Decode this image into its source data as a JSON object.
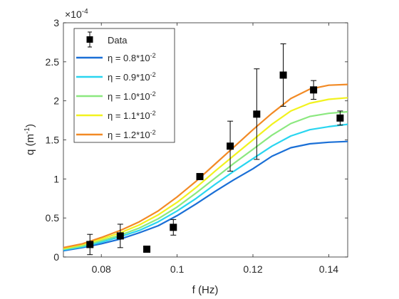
{
  "chart_data": {
    "type": "line",
    "title": "",
    "xlabel": "f (Hz)",
    "ylabel_main": "q (m",
    "ylabel_sup": "-1",
    "ylabel_tail": ")",
    "exponent_prefix": "×10",
    "exponent_power": "-4",
    "xlim": [
      0.07,
      0.145
    ],
    "ylim": [
      0,
      3
    ],
    "xticks": [
      0.08,
      0.1,
      0.12,
      0.14
    ],
    "xtick_labels": [
      "0.08",
      "0.1",
      "0.12",
      "0.14"
    ],
    "yticks": [
      0,
      0.5,
      1,
      1.5,
      2,
      2.5,
      3
    ],
    "ytick_labels": [
      "0",
      "0.5",
      "1",
      "1.5",
      "2",
      "2.5",
      "3"
    ],
    "legend_position": "top-left",
    "grid": false,
    "data_series": {
      "name": "Data",
      "marker": "square",
      "color": "#000000",
      "points": [
        {
          "x": 0.077,
          "y": 0.16,
          "err": 0.13
        },
        {
          "x": 0.085,
          "y": 0.27,
          "err": 0.15
        },
        {
          "x": 0.092,
          "y": 0.1,
          "err": 0
        },
        {
          "x": 0.099,
          "y": 0.38,
          "err": 0.1
        },
        {
          "x": 0.106,
          "y": 1.03,
          "err": 0.03
        },
        {
          "x": 0.114,
          "y": 1.42,
          "err": 0.32
        },
        {
          "x": 0.121,
          "y": 1.83,
          "err": 0.58
        },
        {
          "x": 0.128,
          "y": 2.33,
          "err": 0.4
        },
        {
          "x": 0.136,
          "y": 2.14,
          "err": 0.12
        },
        {
          "x": 0.143,
          "y": 1.78,
          "err": 0.09
        }
      ]
    },
    "x": [
      0.07,
      0.075,
      0.08,
      0.085,
      0.09,
      0.095,
      0.1,
      0.105,
      0.11,
      0.115,
      0.12,
      0.125,
      0.13,
      0.135,
      0.14,
      0.145
    ],
    "series": [
      {
        "name_prefix": "η = 0.8*10",
        "name_sup": "-2",
        "color": "#1a6fd6",
        "values": [
          0.08,
          0.12,
          0.17,
          0.23,
          0.31,
          0.4,
          0.53,
          0.68,
          0.84,
          0.99,
          1.13,
          1.29,
          1.4,
          1.45,
          1.47,
          1.48
        ]
      },
      {
        "name_prefix": "η = 0.9*10",
        "name_sup": "-2",
        "color": "#29d5f0",
        "values": [
          0.09,
          0.13,
          0.19,
          0.26,
          0.34,
          0.45,
          0.59,
          0.75,
          0.93,
          1.1,
          1.26,
          1.42,
          1.55,
          1.63,
          1.67,
          1.7
        ]
      },
      {
        "name_prefix": "η = 1.0*10",
        "name_sup": "-2",
        "color": "#8be87f",
        "values": [
          0.1,
          0.14,
          0.21,
          0.28,
          0.37,
          0.49,
          0.64,
          0.82,
          1.01,
          1.2,
          1.38,
          1.56,
          1.71,
          1.8,
          1.84,
          1.86
        ]
      },
      {
        "name_prefix": "η = 1.1*10",
        "name_sup": "-2",
        "color": "#f2f21e",
        "values": [
          0.11,
          0.16,
          0.23,
          0.31,
          0.41,
          0.54,
          0.7,
          0.89,
          1.1,
          1.3,
          1.5,
          1.7,
          1.87,
          1.97,
          2.02,
          2.04
        ]
      },
      {
        "name_prefix": "η = 1.2*10",
        "name_sup": "-2",
        "color": "#f28a25",
        "values": [
          0.12,
          0.17,
          0.25,
          0.34,
          0.45,
          0.59,
          0.77,
          0.97,
          1.19,
          1.41,
          1.63,
          1.84,
          2.03,
          2.15,
          2.2,
          2.21
        ]
      }
    ]
  }
}
